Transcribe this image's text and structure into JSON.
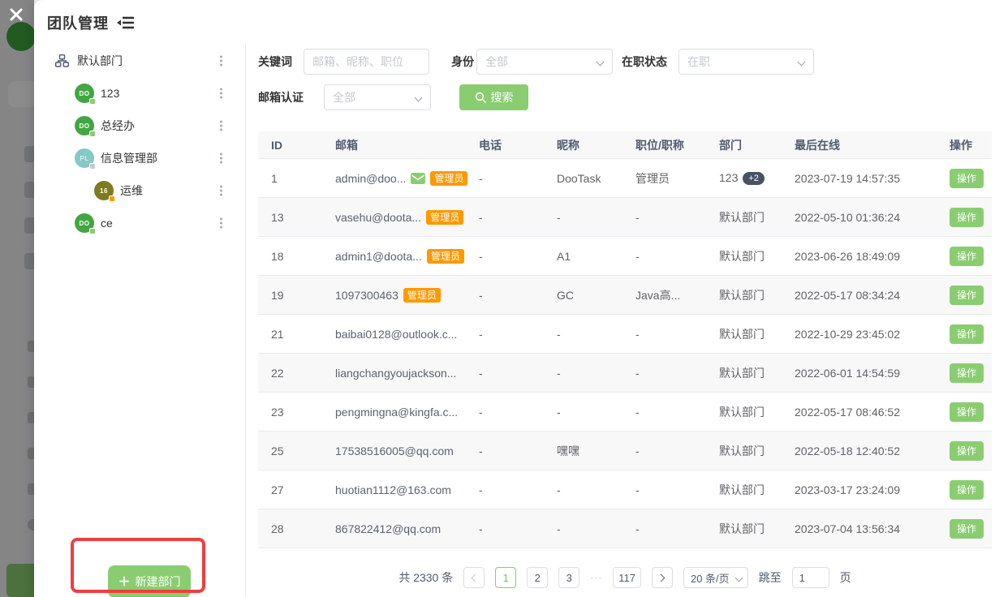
{
  "window": {
    "title": "团队管理"
  },
  "colors": {
    "accent_green": "#8acd71",
    "admin_orange": "#ff9900",
    "dept_pill_navy": "#475266",
    "annotation_red": "#ee3f3f"
  },
  "icons": {
    "close": "close-icon",
    "menu_fold": "menu-fold-icon",
    "org_tree": "org-tree-icon",
    "more_vertical": "kebab-menu-icon",
    "search": "magnifier-icon",
    "mail": "envelope-icon",
    "plus": "＋",
    "chevron_down": "chevron-down-icon"
  },
  "sidebar": {
    "root_label": "默认部门",
    "items": [
      {
        "label": "123",
        "avatar_text": "DO",
        "avatar_color": "#42a642",
        "avatar_text_color": "#ffffff",
        "badge_color": "#8acd71",
        "indent": false
      },
      {
        "label": "总经办",
        "avatar_text": "DO",
        "avatar_color": "#42a642",
        "avatar_text_color": "#ffffff",
        "badge_color": "#8acd71",
        "indent": false
      },
      {
        "label": "信息管理部",
        "avatar_text": "PL",
        "avatar_color": "#85c8c5",
        "avatar_text_color": "#d8efee",
        "badge_color": "#c5c9d1",
        "indent": false
      },
      {
        "label": "运维",
        "avatar_text": "16",
        "avatar_color": "#7e7a20",
        "avatar_text_color": "#ffffff",
        "badge_color": "#ff9900",
        "indent": true
      },
      {
        "label": "ce",
        "avatar_text": "DO",
        "avatar_color": "#42a642",
        "avatar_text_color": "#ffffff",
        "badge_color": "#8acd71",
        "indent": false
      }
    ],
    "new_dept_label": "新建部门"
  },
  "filters": {
    "keyword_label": "关键词",
    "keyword_placeholder": "邮箱、昵称、职位",
    "identity_label": "身份",
    "identity_value": "全部",
    "status_label": "在职状态",
    "status_value": "在职",
    "verify_label": "邮箱认证",
    "verify_value": "全部",
    "search_label": "搜索"
  },
  "table": {
    "columns": [
      "ID",
      "邮箱",
      "电话",
      "昵称",
      "职位/职称",
      "部门",
      "最后在线",
      "操作"
    ],
    "admin_badge": "管理员",
    "action_label": "操作",
    "rows": [
      {
        "id": "1",
        "email": "admin@doo...",
        "verified": true,
        "admin": true,
        "phone": "-",
        "nick": "DooTask",
        "title": "管理员",
        "dept": "123",
        "dept_extra": "+2",
        "last": "2023-07-19 14:57:35"
      },
      {
        "id": "13",
        "email": "vasehu@doota...",
        "verified": false,
        "admin": true,
        "phone": "-",
        "nick": "-",
        "title": "-",
        "dept": "默认部门",
        "dept_extra": "",
        "last": "2022-05-10 01:36:24"
      },
      {
        "id": "18",
        "email": "admin1@doota...",
        "verified": false,
        "admin": true,
        "phone": "-",
        "nick": "A1",
        "title": "-",
        "dept": "默认部门",
        "dept_extra": "",
        "last": "2023-06-26 18:49:09"
      },
      {
        "id": "19",
        "email": "1097300463",
        "verified": false,
        "admin": true,
        "phone": "-",
        "nick": "GC",
        "title": "Java高...",
        "dept": "默认部门",
        "dept_extra": "",
        "last": "2022-05-17 08:34:24"
      },
      {
        "id": "21",
        "email": "baibai0128@outlook.c...",
        "verified": false,
        "admin": false,
        "phone": "-",
        "nick": "-",
        "title": "-",
        "dept": "默认部门",
        "dept_extra": "",
        "last": "2022-10-29 23:45:02"
      },
      {
        "id": "22",
        "email": "liangchangyoujackson...",
        "verified": false,
        "admin": false,
        "phone": "-",
        "nick": "-",
        "title": "-",
        "dept": "默认部门",
        "dept_extra": "",
        "last": "2022-06-01 14:54:59"
      },
      {
        "id": "23",
        "email": "pengmingna@kingfa.c...",
        "verified": false,
        "admin": false,
        "phone": "-",
        "nick": "-",
        "title": "-",
        "dept": "默认部门",
        "dept_extra": "",
        "last": "2022-05-17 08:46:52"
      },
      {
        "id": "25",
        "email": "17538516005@qq.com",
        "verified": false,
        "admin": false,
        "phone": "-",
        "nick": "嘿嘿",
        "title": "-",
        "dept": "默认部门",
        "dept_extra": "",
        "last": "2022-05-18 12:40:52"
      },
      {
        "id": "27",
        "email": "huotian1112@163.com",
        "verified": false,
        "admin": false,
        "phone": "-",
        "nick": "-",
        "title": "-",
        "dept": "默认部门",
        "dept_extra": "",
        "last": "2023-03-17 23:24:09"
      },
      {
        "id": "28",
        "email": "867822412@qq.com",
        "verified": false,
        "admin": false,
        "phone": "-",
        "nick": "-",
        "title": "-",
        "dept": "默认部门",
        "dept_extra": "",
        "last": "2023-07-04 13:56:34"
      }
    ]
  },
  "pagination": {
    "total_text": "共 2330 条",
    "pages": [
      "1",
      "2",
      "3"
    ],
    "active_page": "1",
    "ellipsis": "···",
    "last_page": "117",
    "page_size": "20 条/页",
    "jump_label": "跳至",
    "jump_value": "1",
    "page_unit": "页"
  }
}
